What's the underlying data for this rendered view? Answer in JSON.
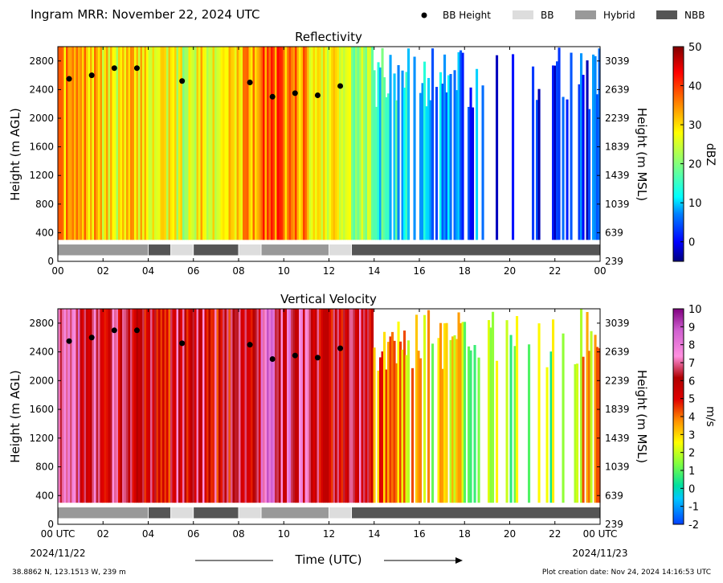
{
  "header": {
    "title": "Ingram MRR:  November 22, 2024 UTC",
    "legend": [
      {
        "label": "BB Height",
        "kind": "dot",
        "color": "#000000"
      },
      {
        "label": "BB",
        "kind": "swatch",
        "color": "#dddddd"
      },
      {
        "label": "Hybrid",
        "kind": "swatch",
        "color": "#999999"
      },
      {
        "label": "NBB",
        "kind": "swatch",
        "color": "#555555"
      }
    ]
  },
  "footer": {
    "location": "38.8862 N, 123.1513 W, 239 m",
    "created": "Plot creation date: Nov 24, 2024 14:16:53 UTC",
    "xlabel": "Time (UTC)",
    "start_date": "2024/11/22",
    "end_date": "2024/11/23"
  },
  "chart_data": [
    {
      "type": "heatmap",
      "title": "Reflectivity",
      "ylabel": "Height (m AGL)",
      "ylabel_right": "Height (m MSL)",
      "xlim": [
        0,
        24
      ],
      "ylim": [
        0,
        3000
      ],
      "x_ticks": [
        "00",
        "02",
        "04",
        "06",
        "08",
        "10",
        "12",
        "14",
        "16",
        "18",
        "20",
        "22",
        "00"
      ],
      "y_ticks": [
        400,
        800,
        1200,
        1600,
        2000,
        2400,
        2800
      ],
      "y_axis_zero_label": "0",
      "y_ticks_right": [
        "639",
        "1039",
        "1439",
        "1839",
        "2239",
        "2639",
        "3039"
      ],
      "y_axis_zero_label_right": "239",
      "colorbar": {
        "label": "dBZ",
        "min": -5,
        "max": 50,
        "ticks": [
          0,
          10,
          20,
          30,
          40,
          50
        ]
      },
      "valid_range": [
        300,
        3000
      ],
      "bb_heights": [
        {
          "t": 0.5,
          "h": 2550
        },
        {
          "t": 1.5,
          "h": 2600
        },
        {
          "t": 2.5,
          "h": 2700
        },
        {
          "t": 3.5,
          "h": 2700
        },
        {
          "t": 5.5,
          "h": 2520
        },
        {
          "t": 8.5,
          "h": 2500
        },
        {
          "t": 9.5,
          "h": 2300
        },
        {
          "t": 10.5,
          "h": 2350
        },
        {
          "t": 11.5,
          "h": 2320
        },
        {
          "t": 12.5,
          "h": 2450
        }
      ]
    },
    {
      "type": "heatmap",
      "title": "Vertical Velocity",
      "ylabel": "Height (m AGL)",
      "ylabel_right": "Height (m MSL)",
      "xlim": [
        0,
        24
      ],
      "ylim": [
        0,
        3000
      ],
      "x_ticks": [
        "00 UTC",
        "02",
        "04",
        "06",
        "08",
        "10",
        "12",
        "14",
        "16",
        "18",
        "20",
        "22",
        "00 UTC"
      ],
      "y_ticks": [
        400,
        800,
        1200,
        1600,
        2000,
        2400,
        2800
      ],
      "y_axis_zero_label": "0",
      "y_ticks_right": [
        "639",
        "1039",
        "1439",
        "1839",
        "2239",
        "2639",
        "3039"
      ],
      "y_axis_zero_label_right": "239",
      "colorbar": {
        "label": "m/s",
        "min": -2,
        "max": 10,
        "ticks": [
          -2,
          -1,
          0,
          1,
          2,
          3,
          4,
          5,
          6,
          7,
          8,
          9,
          10
        ]
      },
      "valid_range": [
        300,
        3000
      ],
      "bb_heights": [
        {
          "t": 0.5,
          "h": 2550
        },
        {
          "t": 1.5,
          "h": 2600
        },
        {
          "t": 2.5,
          "h": 2700
        },
        {
          "t": 3.5,
          "h": 2700
        },
        {
          "t": 5.5,
          "h": 2520
        },
        {
          "t": 8.5,
          "h": 2500
        },
        {
          "t": 9.5,
          "h": 2300
        },
        {
          "t": 10.5,
          "h": 2350
        },
        {
          "t": 11.5,
          "h": 2320
        },
        {
          "t": 12.5,
          "h": 2450
        }
      ]
    }
  ],
  "bb_type_segments": [
    {
      "start": 0,
      "end": 4,
      "type": "Hybrid"
    },
    {
      "start": 4,
      "end": 5,
      "type": "NBB"
    },
    {
      "start": 5,
      "end": 6,
      "type": "BB"
    },
    {
      "start": 6,
      "end": 8,
      "type": "NBB"
    },
    {
      "start": 8,
      "end": 9,
      "type": "BB"
    },
    {
      "start": 9,
      "end": 12,
      "type": "Hybrid"
    },
    {
      "start": 12,
      "end": 13,
      "type": "BB"
    },
    {
      "start": 13,
      "end": 24,
      "type": "NBB"
    }
  ],
  "colors": {
    "BB": "#dddddd",
    "Hybrid": "#999999",
    "NBB": "#555555",
    "dot": "#000000"
  }
}
